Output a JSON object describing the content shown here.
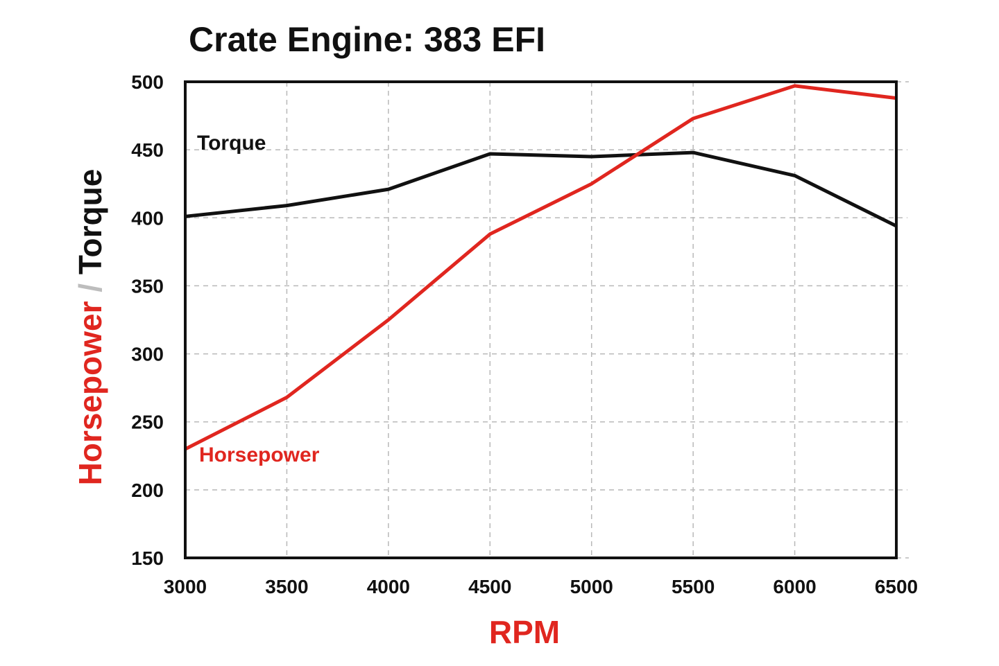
{
  "chart_data": {
    "type": "line",
    "title": "Crate Engine: 383 EFI",
    "xlabel": "RPM",
    "ylabel_parts": [
      "Horsepower",
      " / ",
      "Torque"
    ],
    "xlim": [
      3000,
      6500
    ],
    "ylim": [
      150,
      500
    ],
    "x_ticks": [
      3000,
      3500,
      4000,
      4500,
      5000,
      5500,
      6000,
      6500
    ],
    "y_ticks": [
      150,
      200,
      250,
      300,
      350,
      400,
      450,
      500
    ],
    "grid": true,
    "colors": {
      "horsepower": "#e0261f",
      "torque": "#111111",
      "separator": "#bdbdbd"
    },
    "series": [
      {
        "name": "Torque",
        "x": [
          3000,
          3500,
          4000,
          4500,
          5000,
          5500,
          6000,
          6500
        ],
        "values": [
          401,
          409,
          421,
          447,
          445,
          448,
          431,
          394
        ]
      },
      {
        "name": "Horsepower",
        "x": [
          3000,
          3500,
          4000,
          4500,
          5000,
          5500,
          6000,
          6500
        ],
        "values": [
          230,
          268,
          325,
          388,
          425,
          473,
          497,
          488
        ]
      }
    ]
  }
}
